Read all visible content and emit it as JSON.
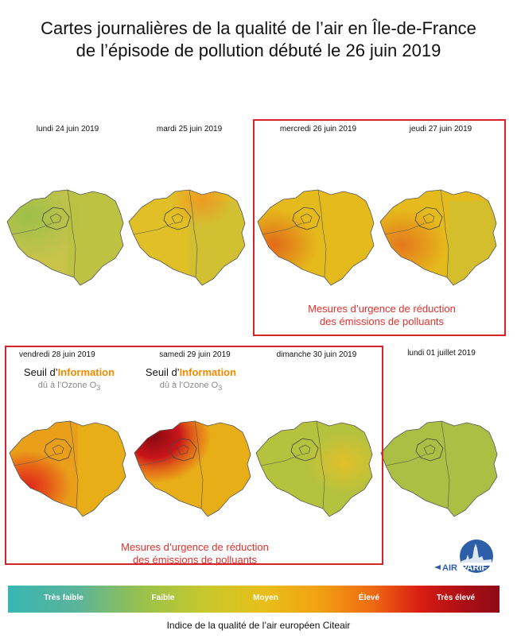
{
  "title": {
    "line1": "Cartes journalières de la qualité de l’air en Île-de-France",
    "line2": "de l’épisode de pollution débuté le 26 juin 2019"
  },
  "maps": [
    {
      "date": "lundi 24 juin 2019"
    },
    {
      "date": "mardi 25 juin 2019"
    },
    {
      "date": "mercredi 26 juin 2019"
    },
    {
      "date": "jeudi 27 juin 2019"
    },
    {
      "date": "vendredi 28 juin 2019"
    },
    {
      "date": "samedi 29 juin 2019"
    },
    {
      "date": "dimanche 30 juin 2019"
    },
    {
      "date": "lundi 01 juillet 2019"
    }
  ],
  "measures": {
    "line1": "Mesures d’urgence de réduction",
    "line2": "des émissions de polluants"
  },
  "seuil": {
    "prefix": "Seuil d’",
    "highlight": "Information",
    "due": "dû à l’Ozone O",
    "sub": "3"
  },
  "logo": {
    "text1": "AIR",
    "text2": "PARIF"
  },
  "scale": {
    "labels": [
      "Très faible",
      "Faible",
      "Moyen",
      "Élevé",
      "Très élevé"
    ]
  },
  "caption": "Indice de la qualité de l’air européen Citeair",
  "colors": {
    "frame": "#d8232a",
    "highlight": "#f08a00",
    "moyen": "#e8bf1a",
    "faible": "#a9c23c"
  }
}
